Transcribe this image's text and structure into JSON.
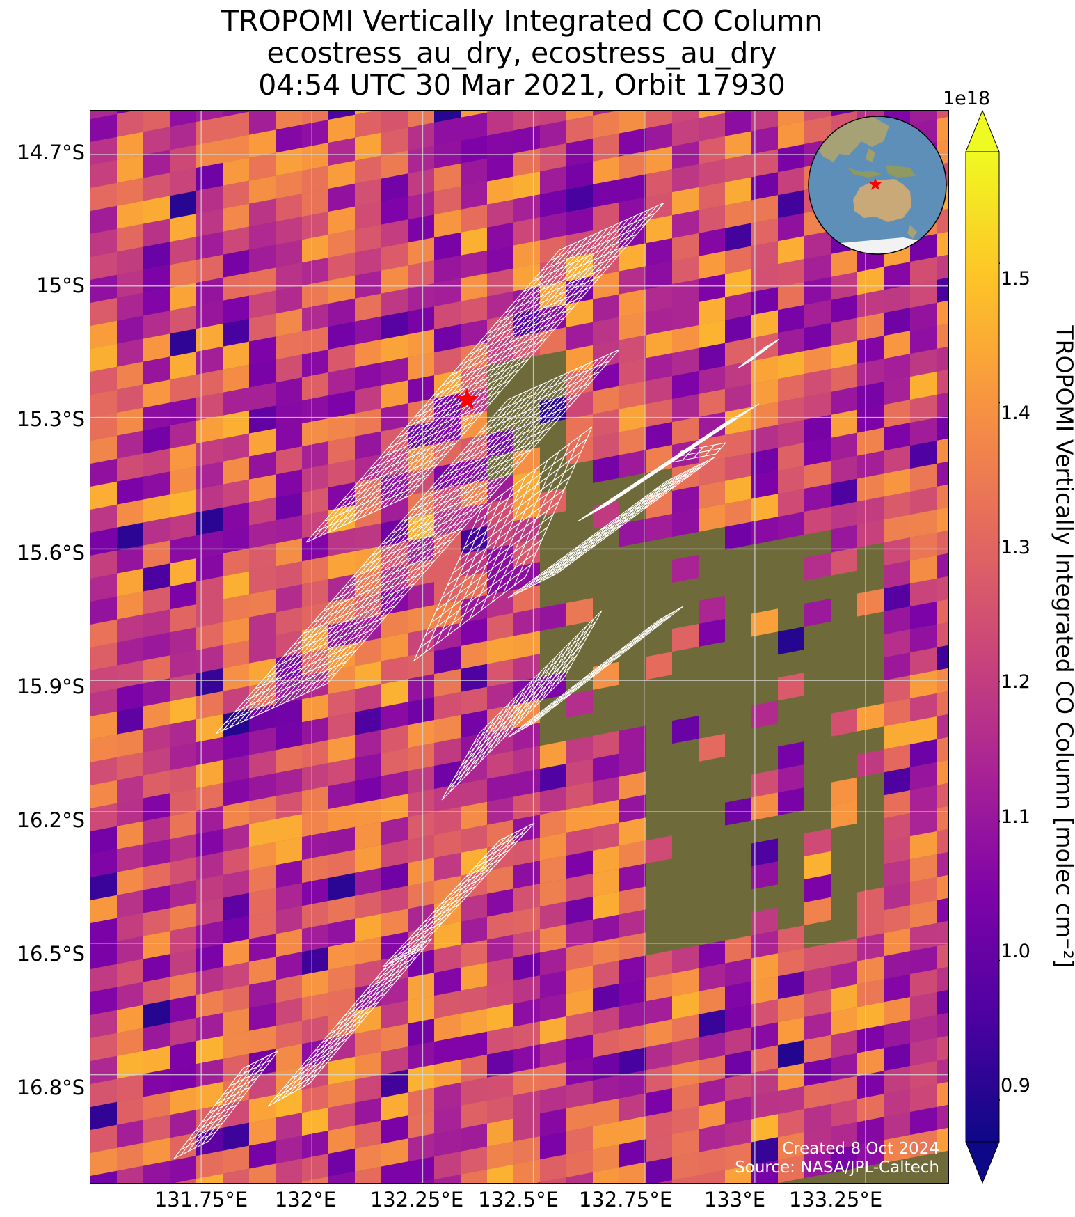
{
  "title": {
    "line1": "TROPOMI Vertically Integrated CO Column",
    "line2": "ecostress_au_dry, ecostress_au_dry",
    "line3": "04:54 UTC 30 Mar 2021, Orbit 17930"
  },
  "map": {
    "lat_ticks": [
      "14.7°S",
      "15°S",
      "15.3°S",
      "15.6°S",
      "15.9°S",
      "16.2°S",
      "16.5°S",
      "16.8°S"
    ],
    "lon_ticks": [
      "131.75°E",
      "132°E",
      "132.25°E",
      "132.5°E",
      "132.75°E",
      "133°E",
      "133.25°E"
    ],
    "lat_values": [
      -14.7,
      -15.0,
      -15.3,
      -15.6,
      -15.9,
      -16.2,
      -16.5,
      -16.8
    ],
    "lon_values": [
      131.75,
      132.0,
      132.25,
      132.5,
      132.75,
      133.0,
      133.25
    ],
    "lon_range": [
      131.5,
      133.44
    ],
    "lat_range": [
      -17.05,
      -14.6
    ],
    "target_marker": {
      "lon": 132.35,
      "lat": -15.26,
      "color": "#ff0000"
    },
    "credit_line1": "Created 8 Oct 2024",
    "credit_line2": "Source: NASA/JPL-Caltech",
    "background_color": "#6e6a3a",
    "pixel_grid_color": "#ffffff"
  },
  "colorbar": {
    "exponent": "1e18",
    "label": "TROPOMI Vertically Integrated CO Column [molec cm⁻²]",
    "ticks": [
      "0.9",
      "1.0",
      "1.1",
      "1.2",
      "1.3",
      "1.4",
      "1.5"
    ],
    "tick_values": [
      0.9,
      1.0,
      1.1,
      1.2,
      1.3,
      1.4,
      1.5
    ],
    "range": [
      0.87,
      1.58
    ],
    "colormap": "plasma",
    "extend": "both"
  },
  "inset_globe": {
    "ocean_color": "#5d8fb8",
    "land_color": "#c9b98d",
    "marker_color": "#ff0000"
  }
}
